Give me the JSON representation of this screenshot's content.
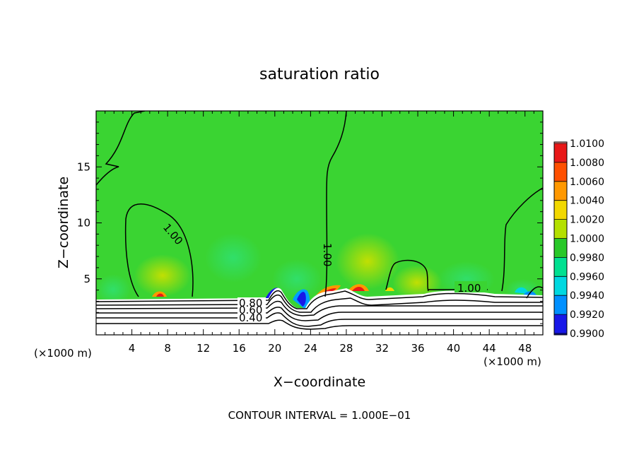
{
  "chart_data": {
    "type": "heatmap",
    "title": "saturation ratio",
    "xlabel": "X−coordinate",
    "ylabel": "Z−coordinate",
    "x_unit_left": "(×1000 m)",
    "x_unit_right": "(×1000 m)",
    "xlim": [
      0,
      50
    ],
    "ylim": [
      0,
      20
    ],
    "xticks": [
      4,
      8,
      12,
      16,
      20,
      24,
      28,
      32,
      36,
      40,
      44,
      48
    ],
    "yticks": [
      5,
      10,
      15
    ],
    "colorbar": {
      "levels": [
        "1.0100",
        "1.0080",
        "1.0060",
        "1.0040",
        "1.0020",
        "1.0000",
        "0.9980",
        "0.9960",
        "0.9940",
        "0.9920",
        "0.9900"
      ],
      "colors": [
        "#f4a0a0",
        "#e81818",
        "#ff5000",
        "#ff9800",
        "#f2d800",
        "#b4e000",
        "#28c828",
        "#00e090",
        "#00d8e0",
        "#0090ff",
        "#1818e8",
        "#1010a0",
        "#700090"
      ]
    },
    "contour_labels": [
      {
        "text": "1.00",
        "x": 17.0,
        "z": 8.7
      },
      {
        "text": "1.00",
        "x": 25.8,
        "z": 7.0
      },
      {
        "text": "1.00",
        "x": 41.0,
        "z": 4.1
      },
      {
        "text": "0.80",
        "x": 17.5,
        "z": 2.6
      },
      {
        "text": "0.60",
        "x": 17.5,
        "z": 2.1
      },
      {
        "text": "0.40",
        "x": 17.5,
        "z": 1.4
      }
    ],
    "contour_interval_text": "CONTOUR INTERVAL = 1.000E−01"
  },
  "colors": {
    "background_field": "#3ad432",
    "frame": "#000000"
  }
}
